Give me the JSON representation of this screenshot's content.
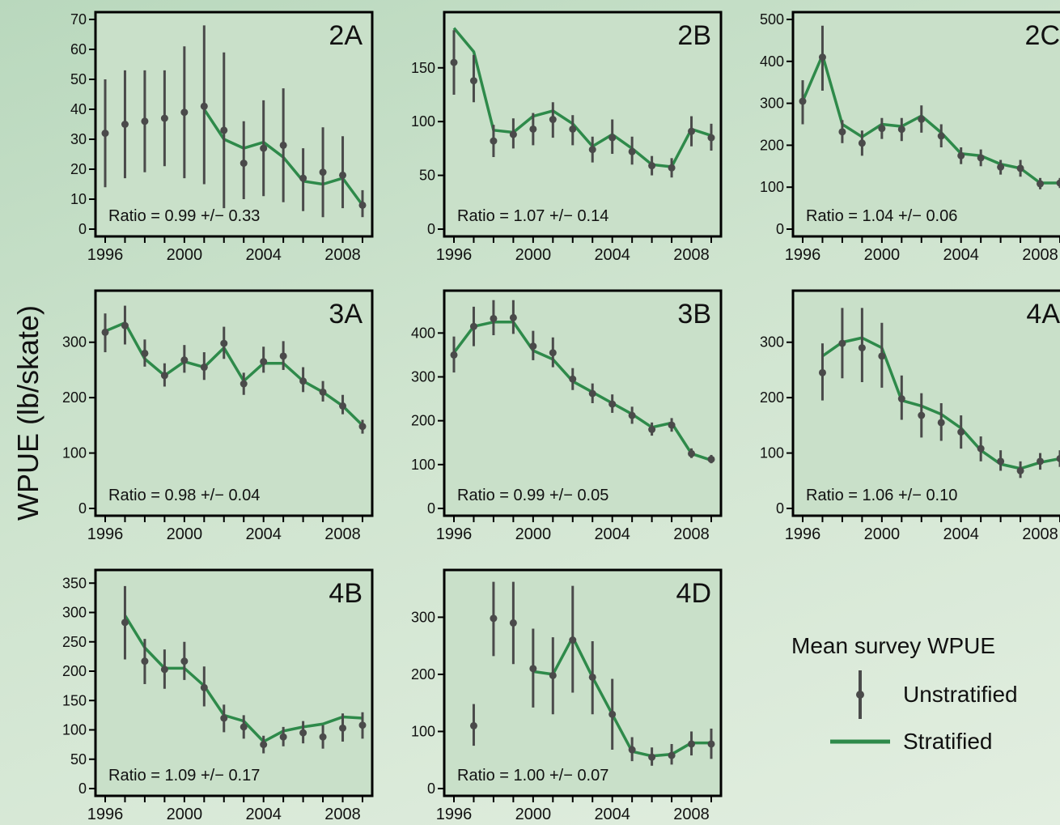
{
  "y_axis_label": "WPUE (lb/skate)",
  "legend": {
    "title": "Mean survey WPUE",
    "unstratified": "Unstratified",
    "stratified": "Stratified"
  },
  "colors": {
    "stratified_line": "#2e8a4a",
    "unstratified_points": "#4a4a4a",
    "plot_background": "#c9e0c9",
    "frame": "#000000"
  },
  "chart_data": [
    {
      "type": "line",
      "panel": "2A",
      "ratio_text": "Ratio = 0.99 +/− 0.33",
      "ylim": [
        0,
        70
      ],
      "yticks": [
        0,
        10,
        20,
        30,
        40,
        50,
        60,
        70
      ],
      "xlim": [
        1995.6,
        2009.4
      ],
      "xticks": [
        1996,
        2000,
        2004,
        2008
      ],
      "stratified": {
        "x": [
          2001,
          2002,
          2003,
          2004,
          2005,
          2006,
          2007,
          2008,
          2009
        ],
        "y": [
          40,
          30,
          27,
          29,
          24,
          16,
          15,
          17,
          8
        ]
      },
      "unstratified": [
        {
          "x": 1996,
          "y": 32,
          "lo": 14,
          "hi": 50
        },
        {
          "x": 1997,
          "y": 35,
          "lo": 17,
          "hi": 53
        },
        {
          "x": 1998,
          "y": 36,
          "lo": 19,
          "hi": 53
        },
        {
          "x": 1999,
          "y": 37,
          "lo": 21,
          "hi": 53
        },
        {
          "x": 2000,
          "y": 39,
          "lo": 17,
          "hi": 61
        },
        {
          "x": 2001,
          "y": 41,
          "lo": 15,
          "hi": 68
        },
        {
          "x": 2002,
          "y": 33,
          "lo": 7,
          "hi": 59
        },
        {
          "x": 2003,
          "y": 22,
          "lo": 10,
          "hi": 36
        },
        {
          "x": 2004,
          "y": 27,
          "lo": 11,
          "hi": 43
        },
        {
          "x": 2005,
          "y": 28,
          "lo": 9,
          "hi": 47
        },
        {
          "x": 2006,
          "y": 17,
          "lo": 6,
          "hi": 27
        },
        {
          "x": 2007,
          "y": 19,
          "lo": 4,
          "hi": 34
        },
        {
          "x": 2008,
          "y": 18,
          "lo": 7,
          "hi": 31
        },
        {
          "x": 2009,
          "y": 8,
          "lo": 4,
          "hi": 13
        }
      ]
    },
    {
      "type": "line",
      "panel": "2B",
      "ratio_text": "Ratio = 1.07 +/− 0.14",
      "ylim": [
        0,
        195
      ],
      "yticks": [
        0,
        50,
        100,
        150
      ],
      "xlim": [
        1995.6,
        2009.4
      ],
      "xticks": [
        1996,
        2000,
        2004,
        2008
      ],
      "stratified": {
        "x": [
          1996,
          1997,
          1998,
          1999,
          2000,
          2001,
          2002,
          2003,
          2004,
          2005,
          2006,
          2007,
          2008,
          2009
        ],
        "y": [
          187,
          165,
          92,
          90,
          105,
          110,
          98,
          77,
          88,
          75,
          60,
          58,
          93,
          87
        ]
      },
      "unstratified": [
        {
          "x": 1996,
          "y": 155,
          "lo": 125,
          "hi": 185
        },
        {
          "x": 1997,
          "y": 138,
          "lo": 118,
          "hi": 162
        },
        {
          "x": 1998,
          "y": 82,
          "lo": 67,
          "hi": 97
        },
        {
          "x": 1999,
          "y": 88,
          "lo": 75,
          "hi": 103
        },
        {
          "x": 2000,
          "y": 93,
          "lo": 78,
          "hi": 108
        },
        {
          "x": 2001,
          "y": 102,
          "lo": 85,
          "hi": 118
        },
        {
          "x": 2002,
          "y": 93,
          "lo": 78,
          "hi": 106
        },
        {
          "x": 2003,
          "y": 74,
          "lo": 62,
          "hi": 86
        },
        {
          "x": 2004,
          "y": 85,
          "lo": 70,
          "hi": 102
        },
        {
          "x": 2005,
          "y": 72,
          "lo": 60,
          "hi": 86
        },
        {
          "x": 2006,
          "y": 59,
          "lo": 50,
          "hi": 68
        },
        {
          "x": 2007,
          "y": 57,
          "lo": 48,
          "hi": 66
        },
        {
          "x": 2008,
          "y": 91,
          "lo": 77,
          "hi": 105
        },
        {
          "x": 2009,
          "y": 85,
          "lo": 73,
          "hi": 98
        }
      ]
    },
    {
      "type": "line",
      "panel": "2C",
      "ratio_text": "Ratio = 1.04 +/− 0.06",
      "ylim": [
        0,
        500
      ],
      "yticks": [
        0,
        100,
        200,
        300,
        400,
        500
      ],
      "xlim": [
        1995.6,
        2009.4
      ],
      "xticks": [
        1996,
        2000,
        2004,
        2008
      ],
      "stratified": {
        "x": [
          1996,
          1997,
          1998,
          1999,
          2000,
          2001,
          2002,
          2003,
          2004,
          2005,
          2006,
          2007,
          2008,
          2009
        ],
        "y": [
          305,
          415,
          250,
          220,
          250,
          245,
          270,
          230,
          180,
          175,
          155,
          145,
          110,
          110
        ]
      },
      "unstratified": [
        {
          "x": 1996,
          "y": 305,
          "lo": 250,
          "hi": 355
        },
        {
          "x": 1997,
          "y": 410,
          "lo": 330,
          "hi": 485
        },
        {
          "x": 1998,
          "y": 232,
          "lo": 205,
          "hi": 260
        },
        {
          "x": 1999,
          "y": 205,
          "lo": 175,
          "hi": 235
        },
        {
          "x": 2000,
          "y": 240,
          "lo": 215,
          "hi": 265
        },
        {
          "x": 2001,
          "y": 238,
          "lo": 210,
          "hi": 265
        },
        {
          "x": 2002,
          "y": 262,
          "lo": 230,
          "hi": 295
        },
        {
          "x": 2003,
          "y": 222,
          "lo": 195,
          "hi": 250
        },
        {
          "x": 2004,
          "y": 175,
          "lo": 155,
          "hi": 195
        },
        {
          "x": 2005,
          "y": 170,
          "lo": 150,
          "hi": 190
        },
        {
          "x": 2006,
          "y": 148,
          "lo": 130,
          "hi": 165
        },
        {
          "x": 2007,
          "y": 145,
          "lo": 125,
          "hi": 165
        },
        {
          "x": 2008,
          "y": 108,
          "lo": 95,
          "hi": 122
        },
        {
          "x": 2009,
          "y": 110,
          "lo": 98,
          "hi": 122
        }
      ]
    },
    {
      "type": "line",
      "panel": "3A",
      "ratio_text": "Ratio = 0.98 +/− 0.04",
      "ylim": [
        0,
        380
      ],
      "yticks": [
        0,
        100,
        200,
        300
      ],
      "xlim": [
        1995.6,
        2009.4
      ],
      "xticks": [
        1996,
        2000,
        2004,
        2008
      ],
      "stratified": {
        "x": [
          1996,
          1997,
          1998,
          1999,
          2000,
          2001,
          2002,
          2003,
          2004,
          2005,
          2006,
          2007,
          2008,
          2009
        ],
        "y": [
          320,
          335,
          270,
          240,
          265,
          255,
          290,
          230,
          262,
          262,
          230,
          210,
          185,
          150
        ]
      },
      "unstratified": [
        {
          "x": 1996,
          "y": 318,
          "lo": 282,
          "hi": 352
        },
        {
          "x": 1997,
          "y": 330,
          "lo": 296,
          "hi": 366
        },
        {
          "x": 1998,
          "y": 280,
          "lo": 256,
          "hi": 305
        },
        {
          "x": 1999,
          "y": 240,
          "lo": 220,
          "hi": 262
        },
        {
          "x": 2000,
          "y": 268,
          "lo": 245,
          "hi": 295
        },
        {
          "x": 2001,
          "y": 255,
          "lo": 232,
          "hi": 282
        },
        {
          "x": 2002,
          "y": 298,
          "lo": 270,
          "hi": 328
        },
        {
          "x": 2003,
          "y": 225,
          "lo": 205,
          "hi": 245
        },
        {
          "x": 2004,
          "y": 265,
          "lo": 245,
          "hi": 292
        },
        {
          "x": 2005,
          "y": 275,
          "lo": 250,
          "hi": 302
        },
        {
          "x": 2006,
          "y": 230,
          "lo": 210,
          "hi": 255
        },
        {
          "x": 2007,
          "y": 210,
          "lo": 193,
          "hi": 230
        },
        {
          "x": 2008,
          "y": 185,
          "lo": 170,
          "hi": 205
        },
        {
          "x": 2009,
          "y": 148,
          "lo": 135,
          "hi": 160
        }
      ]
    },
    {
      "type": "line",
      "panel": "3B",
      "ratio_text": "Ratio = 0.99 +/− 0.05",
      "ylim": [
        0,
        480
      ],
      "yticks": [
        0,
        100,
        200,
        300,
        400
      ],
      "xlim": [
        1995.6,
        2009.4
      ],
      "xticks": [
        1996,
        2000,
        2004,
        2008
      ],
      "stratified": {
        "x": [
          1996,
          1997,
          1998,
          1999,
          2000,
          2001,
          2002,
          2003,
          2004,
          2005,
          2006,
          2007,
          2008,
          2009
        ],
        "y": [
          355,
          415,
          425,
          425,
          360,
          340,
          290,
          265,
          240,
          215,
          185,
          195,
          125,
          110
        ]
      },
      "unstratified": [
        {
          "x": 1996,
          "y": 350,
          "lo": 310,
          "hi": 392
        },
        {
          "x": 1997,
          "y": 415,
          "lo": 370,
          "hi": 460
        },
        {
          "x": 1998,
          "y": 433,
          "lo": 395,
          "hi": 475
        },
        {
          "x": 1999,
          "y": 435,
          "lo": 398,
          "hi": 475
        },
        {
          "x": 2000,
          "y": 370,
          "lo": 338,
          "hi": 405
        },
        {
          "x": 2001,
          "y": 355,
          "lo": 322,
          "hi": 390
        },
        {
          "x": 2002,
          "y": 295,
          "lo": 270,
          "hi": 320
        },
        {
          "x": 2003,
          "y": 262,
          "lo": 240,
          "hi": 285
        },
        {
          "x": 2004,
          "y": 238,
          "lo": 218,
          "hi": 260
        },
        {
          "x": 2005,
          "y": 212,
          "lo": 193,
          "hi": 232
        },
        {
          "x": 2006,
          "y": 180,
          "lo": 166,
          "hi": 196
        },
        {
          "x": 2007,
          "y": 190,
          "lo": 175,
          "hi": 206
        },
        {
          "x": 2008,
          "y": 125,
          "lo": 115,
          "hi": 137
        },
        {
          "x": 2009,
          "y": 112,
          "lo": 103,
          "hi": 122
        }
      ]
    },
    {
      "type": "line",
      "panel": "4A",
      "ratio_text": "Ratio = 1.06 +/− 0.10",
      "ylim": [
        0,
        380
      ],
      "yticks": [
        0,
        100,
        200,
        300
      ],
      "xlim": [
        1995.6,
        2009.4
      ],
      "xticks": [
        1996,
        2000,
        2004,
        2008
      ],
      "stratified": {
        "x": [
          1997,
          1998,
          1999,
          2000,
          2001,
          2002,
          2003,
          2004,
          2005,
          2006,
          2007,
          2008,
          2009
        ],
        "y": [
          275,
          300,
          308,
          290,
          195,
          185,
          170,
          145,
          105,
          80,
          72,
          83,
          90
        ]
      },
      "unstratified": [
        {
          "x": 1997,
          "y": 245,
          "lo": 195,
          "hi": 298
        },
        {
          "x": 1998,
          "y": 298,
          "lo": 235,
          "hi": 362
        },
        {
          "x": 1999,
          "y": 290,
          "lo": 228,
          "hi": 362
        },
        {
          "x": 2000,
          "y": 275,
          "lo": 218,
          "hi": 335
        },
        {
          "x": 2001,
          "y": 198,
          "lo": 160,
          "hi": 240
        },
        {
          "x": 2002,
          "y": 168,
          "lo": 128,
          "hi": 208
        },
        {
          "x": 2003,
          "y": 155,
          "lo": 122,
          "hi": 190
        },
        {
          "x": 2004,
          "y": 138,
          "lo": 108,
          "hi": 168
        },
        {
          "x": 2005,
          "y": 108,
          "lo": 85,
          "hi": 130
        },
        {
          "x": 2006,
          "y": 85,
          "lo": 68,
          "hi": 105
        },
        {
          "x": 2007,
          "y": 68,
          "lo": 55,
          "hi": 85
        },
        {
          "x": 2008,
          "y": 85,
          "lo": 70,
          "hi": 100
        },
        {
          "x": 2009,
          "y": 90,
          "lo": 75,
          "hi": 105
        }
      ]
    },
    {
      "type": "line",
      "panel": "4B",
      "ratio_text": "Ratio = 1.09 +/− 0.17",
      "ylim": [
        0,
        360
      ],
      "yticks": [
        0,
        50,
        100,
        150,
        200,
        250,
        300,
        350
      ],
      "xlim": [
        1995.6,
        2009.4
      ],
      "xticks": [
        1996,
        2000,
        2004,
        2008
      ],
      "stratified": {
        "x": [
          1997,
          1998,
          1999,
          2000,
          2001,
          2002,
          2003,
          2004,
          2005,
          2006,
          2007,
          2008,
          2009
        ],
        "y": [
          295,
          240,
          205,
          205,
          175,
          125,
          115,
          80,
          98,
          105,
          110,
          122,
          120
        ]
      },
      "unstratified": [
        {
          "x": 1997,
          "y": 283,
          "lo": 220,
          "hi": 345
        },
        {
          "x": 1998,
          "y": 217,
          "lo": 178,
          "hi": 255
        },
        {
          "x": 1999,
          "y": 203,
          "lo": 170,
          "hi": 237
        },
        {
          "x": 2000,
          "y": 217,
          "lo": 185,
          "hi": 250
        },
        {
          "x": 2001,
          "y": 172,
          "lo": 140,
          "hi": 208
        },
        {
          "x": 2002,
          "y": 120,
          "lo": 96,
          "hi": 143
        },
        {
          "x": 2003,
          "y": 105,
          "lo": 85,
          "hi": 125
        },
        {
          "x": 2004,
          "y": 75,
          "lo": 60,
          "hi": 90
        },
        {
          "x": 2005,
          "y": 88,
          "lo": 72,
          "hi": 105
        },
        {
          "x": 2006,
          "y": 95,
          "lo": 77,
          "hi": 115
        },
        {
          "x": 2007,
          "y": 88,
          "lo": 68,
          "hi": 108
        },
        {
          "x": 2008,
          "y": 103,
          "lo": 80,
          "hi": 128
        },
        {
          "x": 2009,
          "y": 108,
          "lo": 85,
          "hi": 130
        }
      ]
    },
    {
      "type": "line",
      "panel": "4D",
      "ratio_text": "Ratio = 1.00 +/− 0.07",
      "ylim": [
        0,
        370
      ],
      "yticks": [
        0,
        100,
        200,
        300
      ],
      "xlim": [
        1995.6,
        2009.4
      ],
      "xticks": [
        1996,
        2000,
        2004,
        2008
      ],
      "stratified": {
        "x": [
          2000,
          2001,
          2002,
          2003,
          2004,
          2005,
          2006,
          2007,
          2008,
          2009
        ],
        "y": [
          205,
          200,
          265,
          195,
          130,
          65,
          57,
          60,
          80,
          80
        ]
      },
      "unstratified": [
        {
          "x": 1997,
          "y": 110,
          "lo": 75,
          "hi": 148
        },
        {
          "x": 1998,
          "y": 298,
          "lo": 232,
          "hi": 362
        },
        {
          "x": 1999,
          "y": 290,
          "lo": 218,
          "hi": 362
        },
        {
          "x": 2000,
          "y": 210,
          "lo": 142,
          "hi": 280
        },
        {
          "x": 2001,
          "y": 198,
          "lo": 130,
          "hi": 265
        },
        {
          "x": 2002,
          "y": 260,
          "lo": 168,
          "hi": 355
        },
        {
          "x": 2003,
          "y": 195,
          "lo": 130,
          "hi": 258
        },
        {
          "x": 2004,
          "y": 130,
          "lo": 68,
          "hi": 192
        },
        {
          "x": 2005,
          "y": 68,
          "lo": 48,
          "hi": 90
        },
        {
          "x": 2006,
          "y": 55,
          "lo": 40,
          "hi": 72
        },
        {
          "x": 2007,
          "y": 58,
          "lo": 42,
          "hi": 78
        },
        {
          "x": 2008,
          "y": 78,
          "lo": 58,
          "hi": 100
        },
        {
          "x": 2009,
          "y": 78,
          "lo": 52,
          "hi": 105
        }
      ]
    }
  ]
}
